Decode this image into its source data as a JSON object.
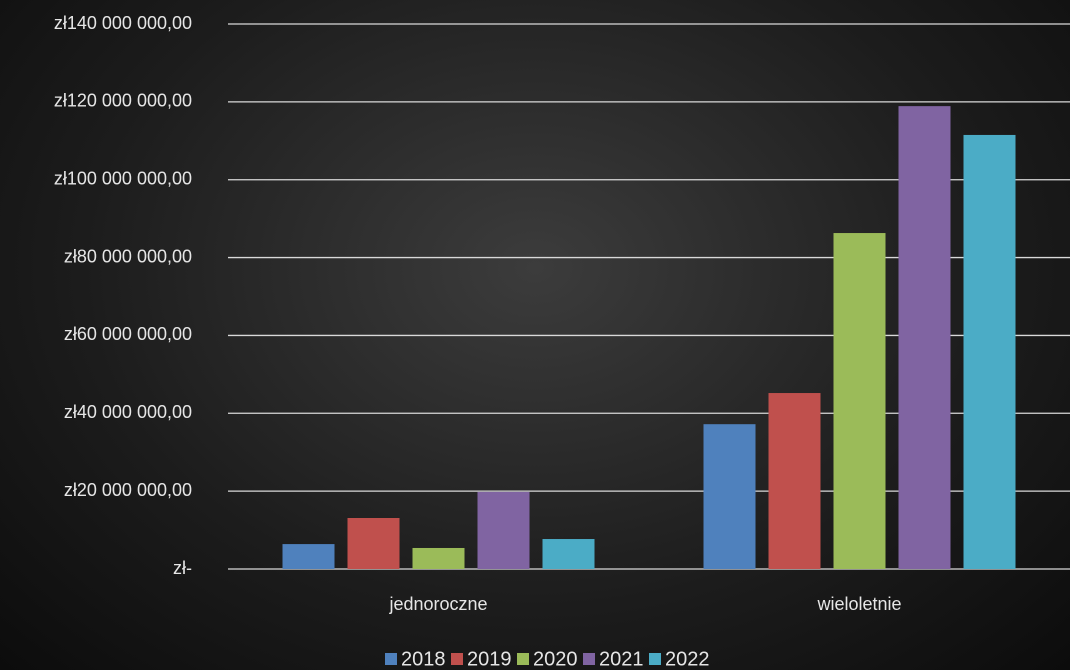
{
  "chart_data": {
    "type": "bar",
    "categories": [
      "jednoroczne",
      "wieloletnie"
    ],
    "series": [
      {
        "name": "2018",
        "color": "#4f81bd",
        "values": [
          6400000,
          37200000
        ]
      },
      {
        "name": "2019",
        "color": "#c0504d",
        "values": [
          13100000,
          45200000
        ]
      },
      {
        "name": "2020",
        "color": "#9bbb59",
        "values": [
          5400000,
          86300000
        ]
      },
      {
        "name": "2021",
        "color": "#8064a2",
        "values": [
          19800000,
          118900000
        ]
      },
      {
        "name": "2022",
        "color": "#4bacc6",
        "values": [
          7700000,
          111500000
        ]
      }
    ],
    "ylim": [
      0,
      140000000
    ],
    "yticks": [
      {
        "value": 0,
        "label": "zł-"
      },
      {
        "value": 20000000,
        "label": "zł20 000 000,00"
      },
      {
        "value": 40000000,
        "label": "zł40 000 000,00"
      },
      {
        "value": 60000000,
        "label": "zł60 000 000,00"
      },
      {
        "value": 80000000,
        "label": "zł80 000 000,00"
      },
      {
        "value": 100000000,
        "label": "zł100 000 000,00"
      },
      {
        "value": 120000000,
        "label": "zł120 000 000,00"
      },
      {
        "value": 140000000,
        "label": "zł140 000 000,00"
      }
    ],
    "grid": true,
    "legend": "bottom"
  }
}
